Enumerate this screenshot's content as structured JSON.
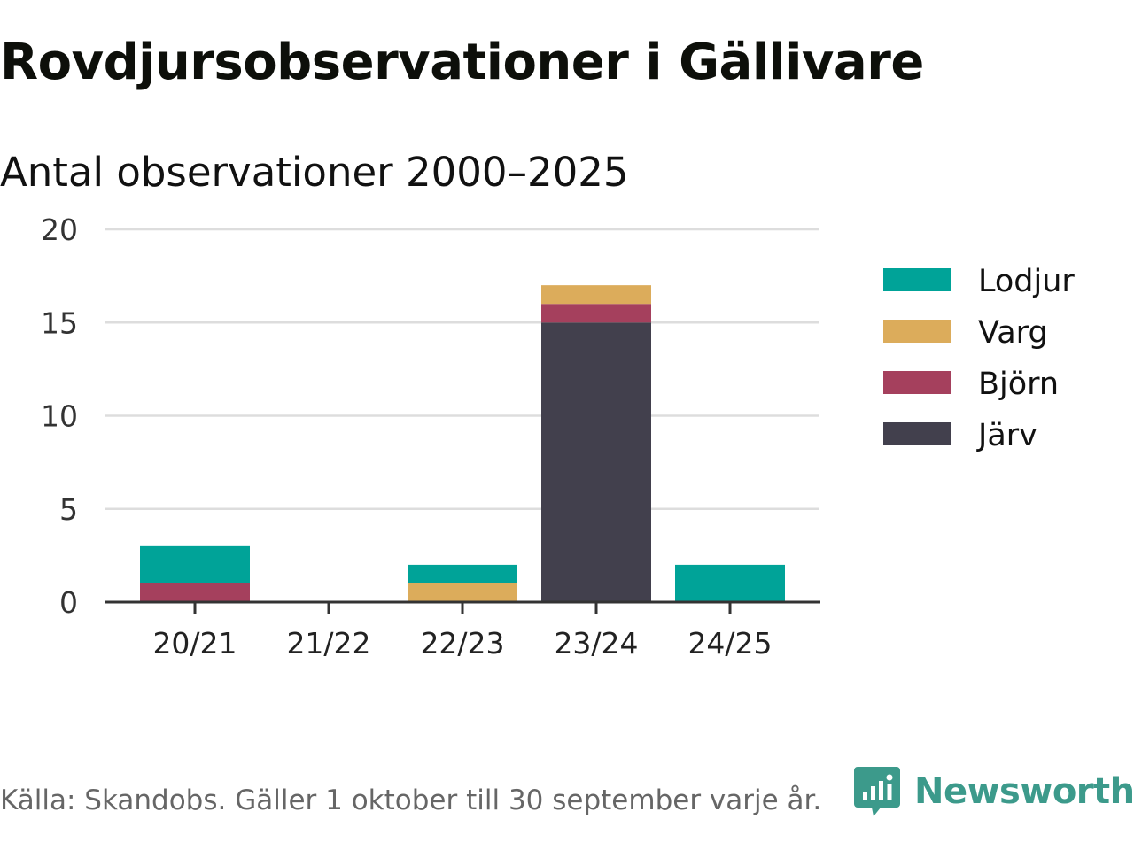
{
  "header": {
    "title": "Rovdjursobservationer i Gällivare",
    "subtitle": "Antal observationer 2000–2025"
  },
  "footer": {
    "source": "Källa: Skandobs. Gäller 1 oktober till 30 september varje år.",
    "brand": "Newsworthy",
    "brand_color": "#3c9a8b"
  },
  "chart_data": {
    "type": "bar",
    "stacked": true,
    "categories": [
      "20/21",
      "21/22",
      "22/23",
      "23/24",
      "24/25"
    ],
    "series": [
      {
        "name": "Järv",
        "color": "#42404d",
        "values": [
          0,
          0,
          0,
          15,
          0
        ]
      },
      {
        "name": "Björn",
        "color": "#a5405d",
        "values": [
          1,
          0,
          0,
          1,
          0
        ]
      },
      {
        "name": "Varg",
        "color": "#dcac5b",
        "values": [
          0,
          0,
          1,
          1,
          0
        ]
      },
      {
        "name": "Lodjur",
        "color": "#00a398",
        "values": [
          2,
          0,
          1,
          0,
          2
        ]
      }
    ],
    "legend_order": [
      "Lodjur",
      "Varg",
      "Björn",
      "Järv"
    ],
    "ylim": [
      0,
      20
    ],
    "yticks": [
      0,
      5,
      10,
      15,
      20
    ],
    "grid": true,
    "legend_position": "right"
  }
}
